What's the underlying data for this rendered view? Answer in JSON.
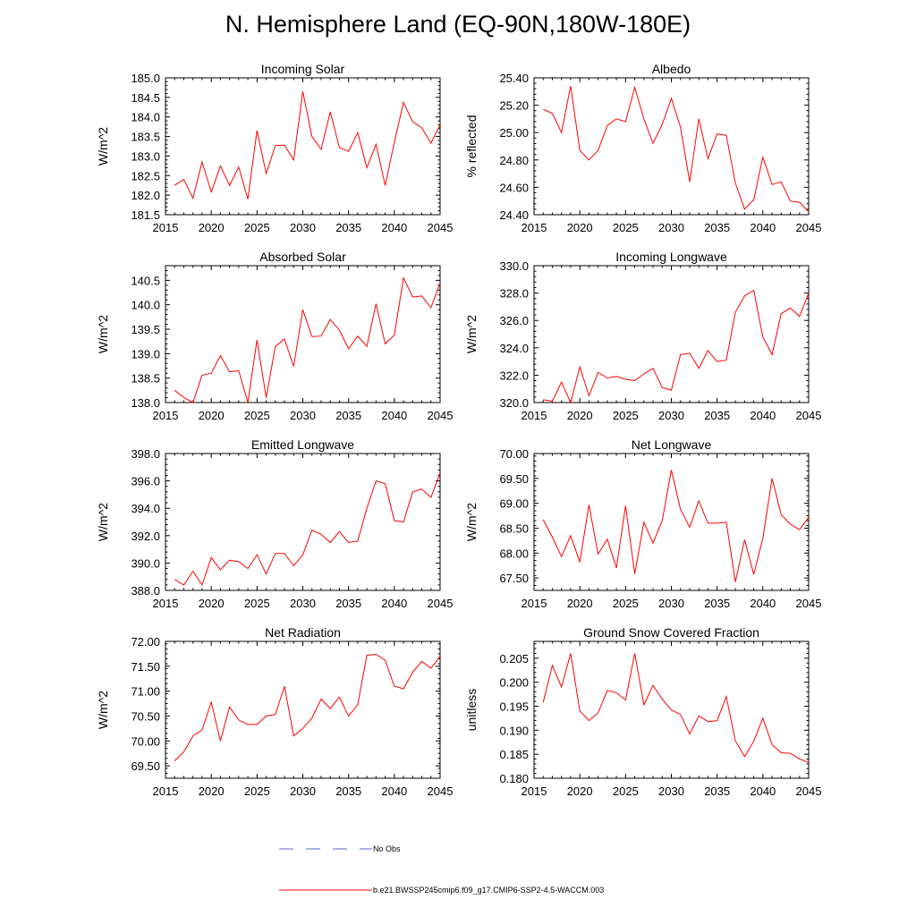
{
  "figure": {
    "title": "N. Hemisphere Land (EQ-90N,180W-180E)"
  },
  "legend": {
    "entries": [
      {
        "label": "No Obs",
        "style": "dashed",
        "color": "#5a64c8"
      },
      {
        "label": "b.e21.BWSSP245cmip6.f09_g17.CMIP6-SSP2-4.5-WACCM.003",
        "style": "solid",
        "color": "#ff0000"
      }
    ]
  },
  "chart_data": [
    {
      "type": "line",
      "title": "Incoming Solar",
      "xlabel": "",
      "ylabel": "W/m^2",
      "xlim": [
        2015,
        2045
      ],
      "ylim": [
        181.5,
        185.0
      ],
      "yticks": [
        "181.5",
        "182.0",
        "182.5",
        "183.0",
        "183.5",
        "184.0",
        "184.5",
        "185.0"
      ],
      "xticks": [
        "2015",
        "2020",
        "2025",
        "2030",
        "2035",
        "2040",
        "2045"
      ],
      "series": [
        {
          "name": "b.e21.BWSSP245cmip6.f09_g17.CMIP6-SSP2-4.5-WACCM.003",
          "color": "#ff0000",
          "x": [
            2016,
            2017,
            2018,
            2019,
            2020,
            2021,
            2022,
            2023,
            2024,
            2025,
            2026,
            2027,
            2028,
            2029,
            2030,
            2031,
            2032,
            2033,
            2034,
            2035,
            2036,
            2037,
            2038,
            2039,
            2040,
            2041,
            2042,
            2043,
            2044,
            2045
          ],
          "y": [
            182.25,
            182.4,
            181.92,
            182.85,
            182.08,
            182.75,
            182.25,
            182.72,
            181.9,
            183.65,
            182.55,
            183.27,
            183.28,
            182.9,
            184.65,
            183.5,
            183.17,
            184.13,
            183.22,
            183.12,
            183.6,
            182.7,
            183.3,
            182.25,
            183.35,
            184.37,
            183.88,
            183.72,
            183.33,
            183.8
          ]
        }
      ]
    },
    {
      "type": "line",
      "title": "Albedo",
      "xlabel": "",
      "ylabel": "% reflected",
      "xlim": [
        2015,
        2045
      ],
      "ylim": [
        24.4,
        25.4
      ],
      "yticks": [
        "24.40",
        "24.60",
        "24.80",
        "25.00",
        "25.20",
        "25.40"
      ],
      "xticks": [
        "2015",
        "2020",
        "2025",
        "2030",
        "2035",
        "2040",
        "2045"
      ],
      "series": [
        {
          "name": "b.e21.BWSSP245cmip6.f09_g17.CMIP6-SSP2-4.5-WACCM.003",
          "color": "#ff0000",
          "x": [
            2016,
            2017,
            2018,
            2019,
            2020,
            2021,
            2022,
            2023,
            2024,
            2025,
            2026,
            2027,
            2028,
            2029,
            2030,
            2031,
            2032,
            2033,
            2034,
            2035,
            2036,
            2037,
            2038,
            2039,
            2040,
            2041,
            2042,
            2043,
            2044,
            2045
          ],
          "y": [
            25.17,
            25.14,
            25.0,
            25.34,
            24.87,
            24.8,
            24.87,
            25.05,
            25.1,
            25.08,
            25.33,
            25.1,
            24.92,
            25.06,
            25.25,
            25.04,
            24.64,
            25.1,
            24.81,
            24.99,
            24.98,
            24.63,
            24.44,
            24.51,
            24.82,
            24.62,
            24.64,
            24.5,
            24.49,
            24.42
          ]
        }
      ]
    },
    {
      "type": "line",
      "title": "Absorbed Solar",
      "xlabel": "",
      "ylabel": "W/m^2",
      "xlim": [
        2015,
        2045
      ],
      "ylim": [
        138.0,
        140.8
      ],
      "yticks": [
        "138.0",
        "138.5",
        "139.0",
        "139.5",
        "140.0",
        "140.5"
      ],
      "xticks": [
        "2015",
        "2020",
        "2025",
        "2030",
        "2035",
        "2040",
        "2045"
      ],
      "series": [
        {
          "name": "b.e21.BWSSP245cmip6.f09_g17.CMIP6-SSP2-4.5-WACCM.003",
          "color": "#ff0000",
          "x": [
            2016,
            2017,
            2018,
            2019,
            2020,
            2021,
            2022,
            2023,
            2024,
            2025,
            2026,
            2027,
            2028,
            2029,
            2030,
            2031,
            2032,
            2033,
            2034,
            2035,
            2036,
            2037,
            2038,
            2039,
            2040,
            2041,
            2042,
            2043,
            2044,
            2045
          ],
          "y": [
            138.25,
            138.1,
            138.0,
            138.56,
            138.6,
            138.96,
            138.63,
            138.65,
            138.0,
            139.28,
            138.1,
            139.15,
            139.3,
            138.74,
            139.9,
            139.35,
            139.36,
            139.7,
            139.48,
            139.1,
            139.36,
            139.15,
            140.02,
            139.2,
            139.38,
            140.55,
            140.16,
            140.18,
            139.94,
            140.45
          ]
        }
      ]
    },
    {
      "type": "line",
      "title": "Incoming Longwave",
      "xlabel": "",
      "ylabel": "W/m^2",
      "xlim": [
        2015,
        2045
      ],
      "ylim": [
        320.0,
        330.0
      ],
      "yticks": [
        "320.0",
        "322.0",
        "324.0",
        "326.0",
        "328.0",
        "330.0"
      ],
      "xticks": [
        "2015",
        "2020",
        "2025",
        "2030",
        "2035",
        "2040",
        "2045"
      ],
      "series": [
        {
          "name": "b.e21.BWSSP245cmip6.f09_g17.CMIP6-SSP2-4.5-WACCM.003",
          "color": "#ff0000",
          "x": [
            2016,
            2017,
            2018,
            2019,
            2020,
            2021,
            2022,
            2023,
            2024,
            2025,
            2026,
            2027,
            2028,
            2029,
            2030,
            2031,
            2032,
            2033,
            2034,
            2035,
            2036,
            2037,
            2038,
            2039,
            2040,
            2041,
            2042,
            2043,
            2044,
            2045
          ],
          "y": [
            320.2,
            320.1,
            321.5,
            320.0,
            322.6,
            320.5,
            322.2,
            321.8,
            321.9,
            321.7,
            321.6,
            322.1,
            322.5,
            321.1,
            320.9,
            323.5,
            323.6,
            322.5,
            323.8,
            323.0,
            323.1,
            326.6,
            327.8,
            328.2,
            324.8,
            323.5,
            326.5,
            326.9,
            326.3,
            328.0
          ]
        }
      ]
    },
    {
      "type": "line",
      "title": "Emitted Longwave",
      "xlabel": "",
      "ylabel": "W/m^2",
      "xlim": [
        2015,
        2045
      ],
      "ylim": [
        388.0,
        398.0
      ],
      "yticks": [
        "388.0",
        "390.0",
        "392.0",
        "394.0",
        "396.0",
        "398.0"
      ],
      "xticks": [
        "2015",
        "2020",
        "2025",
        "2030",
        "2035",
        "2040",
        "2045"
      ],
      "series": [
        {
          "name": "b.e21.BWSSP245cmip6.f09_g17.CMIP6-SSP2-4.5-WACCM.003",
          "color": "#ff0000",
          "x": [
            2016,
            2017,
            2018,
            2019,
            2020,
            2021,
            2022,
            2023,
            2024,
            2025,
            2026,
            2027,
            2028,
            2029,
            2030,
            2031,
            2032,
            2033,
            2034,
            2035,
            2036,
            2037,
            2038,
            2039,
            2040,
            2041,
            2042,
            2043,
            2044,
            2045
          ],
          "y": [
            388.8,
            388.4,
            389.4,
            388.4,
            390.4,
            389.5,
            390.2,
            390.1,
            389.6,
            390.6,
            389.2,
            390.7,
            390.7,
            389.8,
            390.6,
            392.4,
            392.1,
            391.5,
            392.3,
            391.5,
            391.6,
            394.0,
            396.0,
            395.8,
            393.1,
            393.0,
            395.2,
            395.4,
            394.8,
            396.6
          ]
        }
      ]
    },
    {
      "type": "line",
      "title": "Net Longwave",
      "xlabel": "",
      "ylabel": "W/m^2",
      "xlim": [
        2015,
        2045
      ],
      "ylim": [
        67.25,
        70.0
      ],
      "yticks": [
        "67.50",
        "68.00",
        "68.50",
        "69.00",
        "69.50",
        "70.00"
      ],
      "xticks": [
        "2015",
        "2020",
        "2025",
        "2030",
        "2035",
        "2040",
        "2045"
      ],
      "series": [
        {
          "name": "b.e21.BWSSP245cmip6.f09_g17.CMIP6-SSP2-4.5-WACCM.003",
          "color": "#ff0000",
          "x": [
            2016,
            2017,
            2018,
            2019,
            2020,
            2021,
            2022,
            2023,
            2024,
            2025,
            2026,
            2027,
            2028,
            2029,
            2030,
            2031,
            2032,
            2033,
            2034,
            2035,
            2036,
            2037,
            2038,
            2039,
            2040,
            2041,
            2042,
            2043,
            2044,
            2045
          ],
          "y": [
            68.67,
            68.32,
            67.93,
            68.35,
            67.82,
            68.97,
            67.98,
            68.28,
            67.7,
            68.95,
            67.58,
            68.62,
            68.2,
            68.65,
            69.67,
            68.88,
            68.52,
            69.05,
            68.6,
            68.6,
            68.62,
            67.42,
            68.27,
            67.57,
            68.3,
            69.5,
            68.77,
            68.58,
            68.47,
            68.72
          ]
        }
      ]
    },
    {
      "type": "line",
      "title": "Net Radiation",
      "xlabel": "",
      "ylabel": "W/m^2",
      "xlim": [
        2015,
        2045
      ],
      "ylim": [
        69.25,
        72.0
      ],
      "yticks": [
        "69.50",
        "70.00",
        "70.50",
        "71.00",
        "71.50",
        "72.00"
      ],
      "xticks": [
        "2015",
        "2020",
        "2025",
        "2030",
        "2035",
        "2040",
        "2045"
      ],
      "series": [
        {
          "name": "b.e21.BWSSP245cmip6.f09_g17.CMIP6-SSP2-4.5-WACCM.003",
          "color": "#ff0000",
          "x": [
            2016,
            2017,
            2018,
            2019,
            2020,
            2021,
            2022,
            2023,
            2024,
            2025,
            2026,
            2027,
            2028,
            2029,
            2030,
            2031,
            2032,
            2033,
            2034,
            2035,
            2036,
            2037,
            2038,
            2039,
            2040,
            2041,
            2042,
            2043,
            2044,
            2045
          ],
          "y": [
            69.6,
            69.78,
            70.1,
            70.22,
            70.78,
            70.0,
            70.68,
            70.42,
            70.33,
            70.33,
            70.5,
            70.53,
            71.1,
            70.1,
            70.25,
            70.46,
            70.84,
            70.65,
            70.88,
            70.5,
            70.73,
            71.72,
            71.74,
            71.62,
            71.1,
            71.05,
            71.38,
            71.6,
            71.46,
            71.7
          ]
        }
      ]
    },
    {
      "type": "line",
      "title": "Ground Snow Covered Fraction",
      "xlabel": "",
      "ylabel": "unitless",
      "xlim": [
        2015,
        2045
      ],
      "ylim": [
        0.18,
        0.2085
      ],
      "yticks": [
        "0.180",
        "0.185",
        "0.190",
        "0.195",
        "0.200",
        "0.205"
      ],
      "xticks": [
        "2015",
        "2020",
        "2025",
        "2030",
        "2035",
        "2040",
        "2045"
      ],
      "series": [
        {
          "name": "b.e21.BWSSP245cmip6.f09_g17.CMIP6-SSP2-4.5-WACCM.003",
          "color": "#ff0000",
          "x": [
            2016,
            2017,
            2018,
            2019,
            2020,
            2021,
            2022,
            2023,
            2024,
            2025,
            2026,
            2027,
            2028,
            2029,
            2030,
            2031,
            2032,
            2033,
            2034,
            2035,
            2036,
            2037,
            2038,
            2039,
            2040,
            2041,
            2042,
            2043,
            2044,
            2045
          ],
          "y": [
            0.1958,
            0.2035,
            0.199,
            0.206,
            0.194,
            0.192,
            0.1936,
            0.1983,
            0.1978,
            0.1963,
            0.206,
            0.1953,
            0.1993,
            0.1965,
            0.1942,
            0.1933,
            0.1892,
            0.193,
            0.1918,
            0.192,
            0.197,
            0.1878,
            0.1845,
            0.1877,
            0.1925,
            0.187,
            0.1853,
            0.1852,
            0.184,
            0.1833
          ]
        }
      ]
    }
  ]
}
